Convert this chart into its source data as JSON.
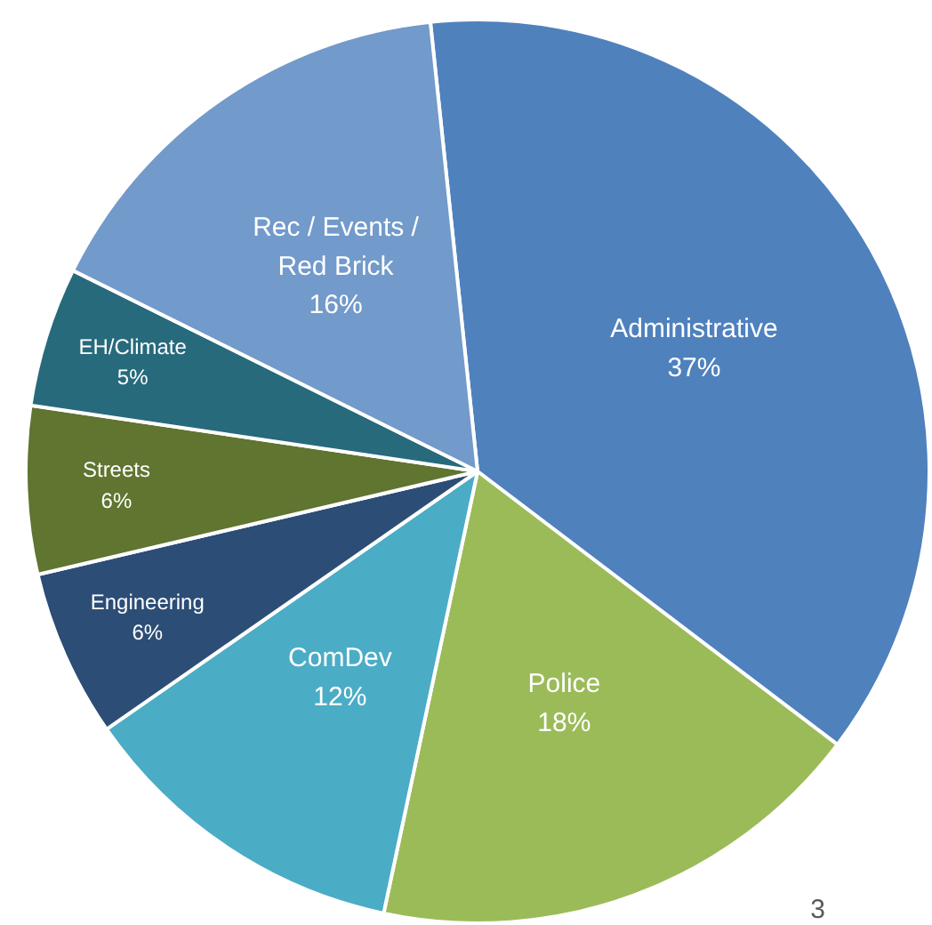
{
  "chart_data": {
    "type": "pie",
    "categories": [
      "Administrative",
      "Police",
      "ComDev",
      "Engineering",
      "Streets",
      "EH/Climate",
      "Rec / Events / Red Brick"
    ],
    "values": [
      37,
      18,
      12,
      6,
      6,
      5,
      16
    ],
    "colors": [
      "#4f81bd",
      "#9bbb59",
      "#4bacc6",
      "#2c4d75",
      "#5f7530",
      "#276a7c",
      "#729aca"
    ],
    "value_labels": [
      "37%",
      "18%",
      "12%",
      "6%",
      "6%",
      "5%",
      "16%"
    ],
    "legend": false,
    "annotations": [
      "3"
    ]
  }
}
